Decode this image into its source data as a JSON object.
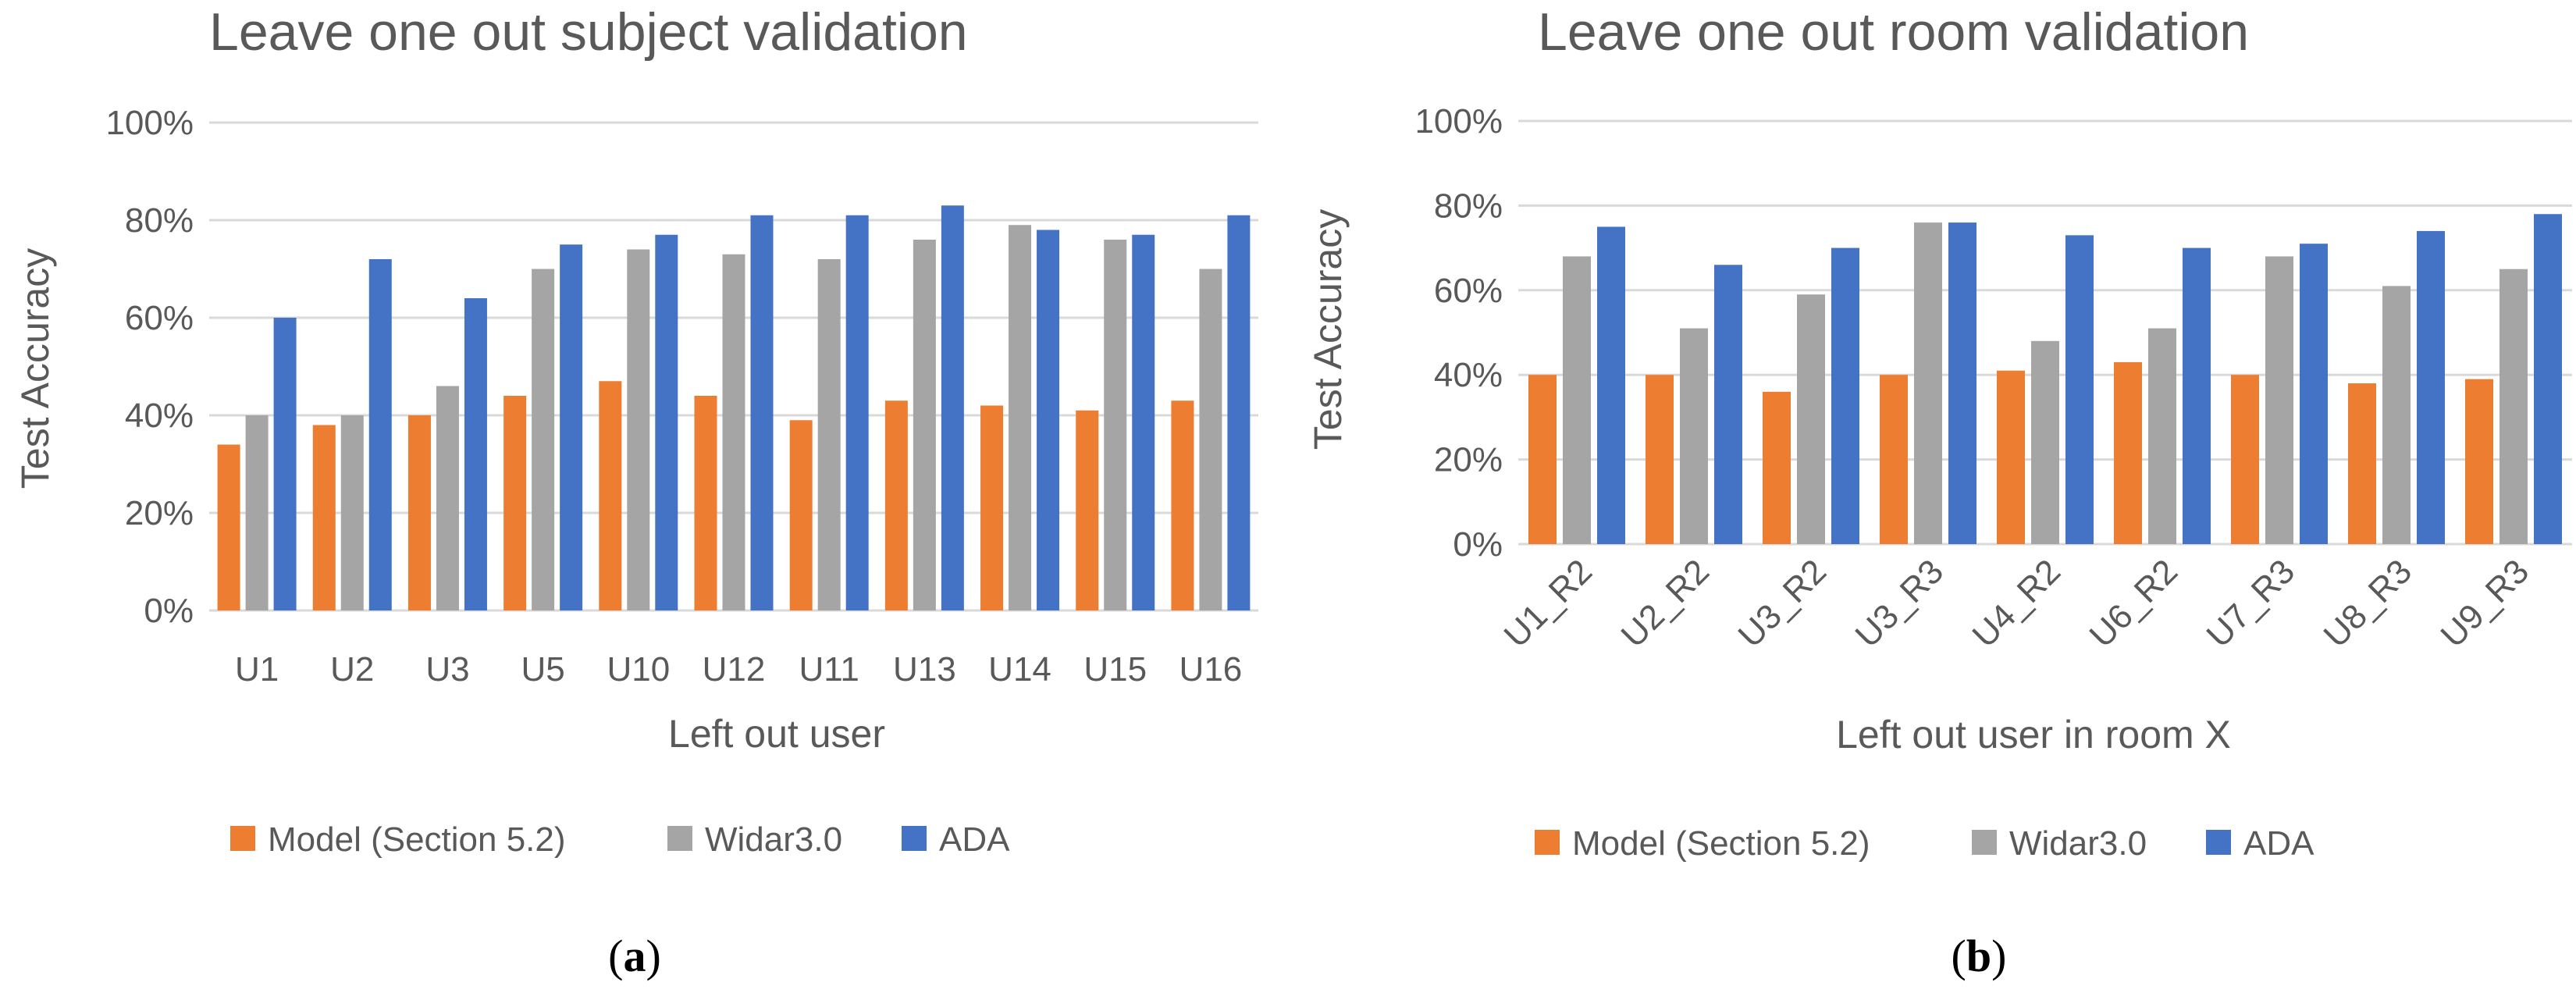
{
  "colors": {
    "model": "#ed7d31",
    "widar": "#a5a5a5",
    "ada": "#4472c4",
    "text": "#595959",
    "grid": "#d9d9d9"
  },
  "captions": {
    "a_open": "(",
    "a_letter": "a",
    "a_close": ")",
    "b_open": "(",
    "b_letter": "b",
    "b_close": ")"
  },
  "chart_data": [
    {
      "type": "bar",
      "title": "Leave one out subject validation",
      "xlabel": "Left out user",
      "ylabel": "Test Accuracy",
      "ylim": [
        0,
        100
      ],
      "yticks": [
        "0%",
        "20%",
        "40%",
        "60%",
        "80%",
        "100%"
      ],
      "grid": true,
      "legend_position": "bottom",
      "categories": [
        "U1",
        "U2",
        "U3",
        "U5",
        "U10",
        "U12",
        "U11",
        "U13",
        "U14",
        "U15",
        "U16"
      ],
      "series": [
        {
          "name": "Model (Section 5.2)",
          "values": [
            34,
            38,
            40,
            44,
            47,
            44,
            39,
            43,
            42,
            41,
            43
          ]
        },
        {
          "name": "Widar3.0",
          "values": [
            40,
            40,
            46,
            70,
            74,
            73,
            72,
            76,
            79,
            76,
            70
          ]
        },
        {
          "name": "ADA",
          "values": [
            60,
            72,
            64,
            75,
            77,
            81,
            81,
            83,
            78,
            77,
            81
          ]
        }
      ]
    },
    {
      "type": "bar",
      "title": "Leave one out room validation",
      "xlabel": "Left out user in room X",
      "ylabel": "Test Accuracy",
      "ylim": [
        0,
        100
      ],
      "yticks": [
        "0%",
        "20%",
        "40%",
        "60%",
        "80%",
        "100%"
      ],
      "grid": true,
      "legend_position": "bottom",
      "categories": [
        "U1_R2",
        "U2_R2",
        "U3_R2",
        "U3_R3",
        "U4_R2",
        "U6_R2",
        "U7_R3",
        "U8_R3",
        "U9_R3"
      ],
      "series": [
        {
          "name": "Model (Section 5.2)",
          "values": [
            40,
            40,
            36,
            40,
            41,
            43,
            40,
            38,
            39
          ]
        },
        {
          "name": "Widar3.0",
          "values": [
            68,
            51,
            59,
            76,
            48,
            51,
            68,
            61,
            65
          ]
        },
        {
          "name": "ADA",
          "values": [
            75,
            66,
            70,
            76,
            73,
            70,
            71,
            74,
            78
          ]
        }
      ]
    }
  ]
}
